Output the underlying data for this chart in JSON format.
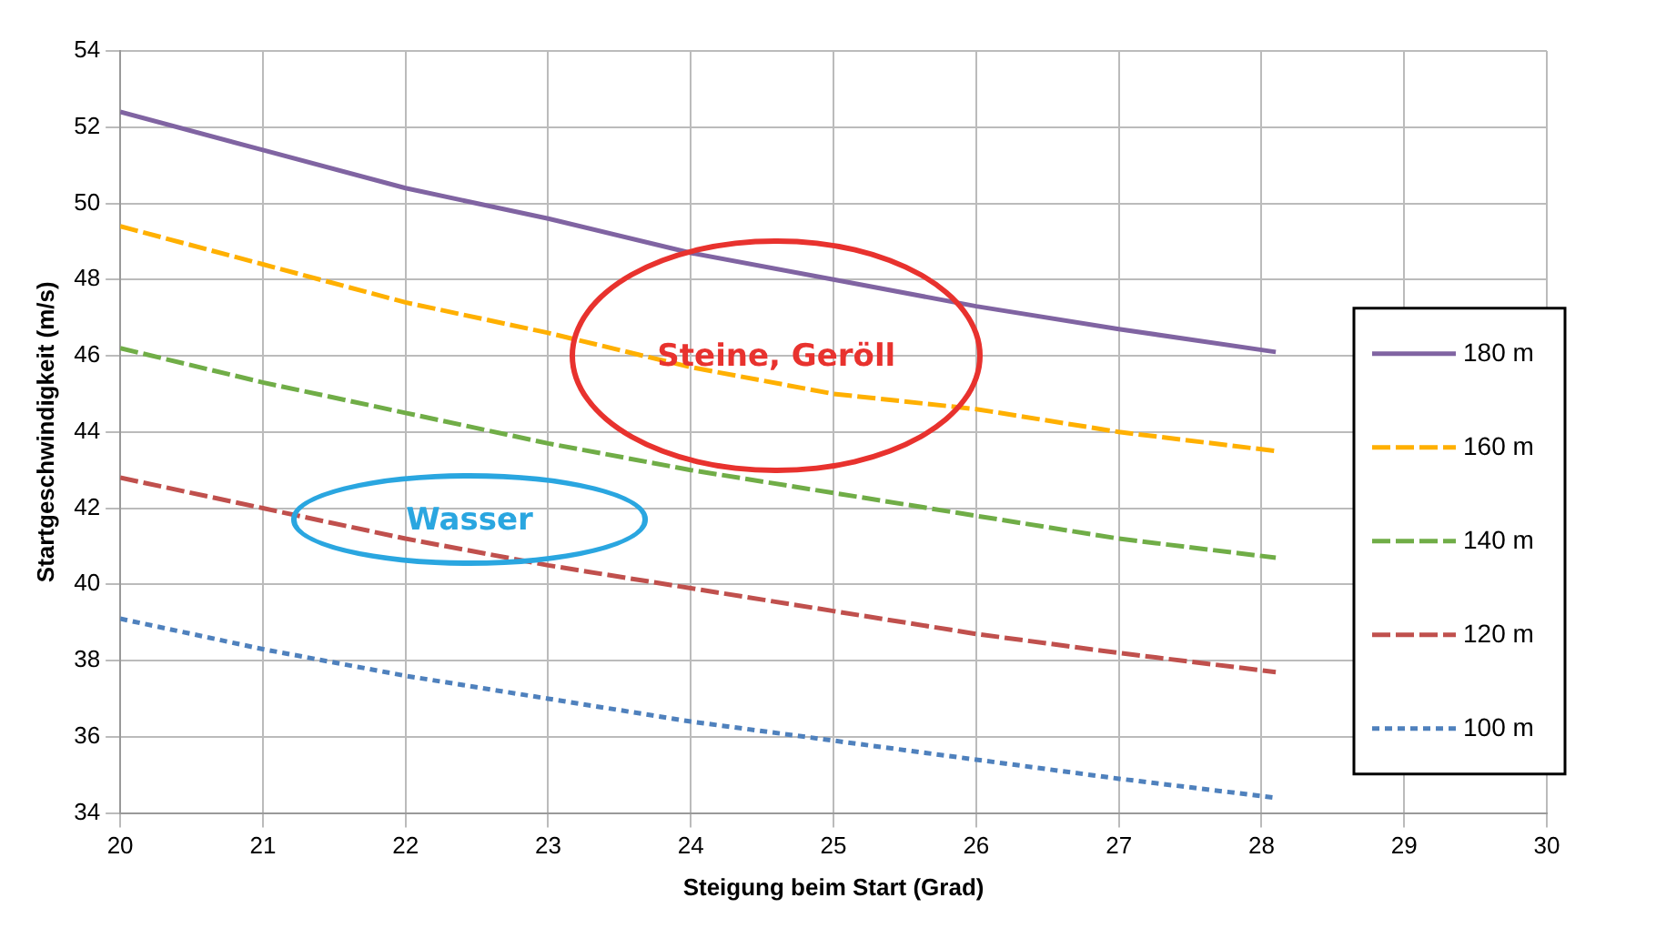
{
  "chart_data": {
    "type": "line",
    "xlabel": "Steigung beim Start (Grad)",
    "ylabel": "Startgeschwindigkeit (m/s)",
    "x": [
      20,
      21,
      22,
      23,
      24,
      25,
      26,
      27,
      28.1
    ],
    "xlim": [
      20,
      30
    ],
    "xticks": [
      20,
      21,
      22,
      23,
      24,
      25,
      26,
      27,
      28,
      29,
      30
    ],
    "ylim": [
      34,
      54
    ],
    "yticks": [
      34,
      36,
      38,
      40,
      42,
      44,
      46,
      48,
      50,
      52,
      54
    ],
    "grid": true,
    "legend": "right",
    "marker": "none",
    "series": [
      {
        "name": "180 m",
        "color": "#8064a2",
        "line_style": "solid",
        "values": [
          52.4,
          51.4,
          50.4,
          49.6,
          48.7,
          48.0,
          47.3,
          46.7,
          46.1
        ]
      },
      {
        "name": "160 m",
        "color": "#ffb000",
        "line_style": "dashed",
        "values": [
          49.4,
          48.4,
          47.4,
          46.6,
          45.7,
          45.0,
          44.6,
          44.0,
          43.5
        ]
      },
      {
        "name": "140 m",
        "color": "#70ad47",
        "line_style": "dashed",
        "values": [
          46.2,
          45.3,
          44.5,
          43.7,
          43.0,
          42.4,
          41.8,
          41.2,
          40.7
        ]
      },
      {
        "name": "120 m",
        "color": "#c0504d",
        "line_style": "dashed",
        "values": [
          42.8,
          42.0,
          41.2,
          40.5,
          39.9,
          39.3,
          38.7,
          38.2,
          37.7
        ]
      },
      {
        "name": "100 m",
        "color": "#4f81bd",
        "line_style": "dotted",
        "values": [
          39.1,
          38.3,
          37.6,
          37.0,
          36.4,
          35.9,
          35.4,
          34.9,
          34.4
        ]
      }
    ],
    "annotations": [
      "Steine, Geröll",
      "Wasser"
    ]
  }
}
